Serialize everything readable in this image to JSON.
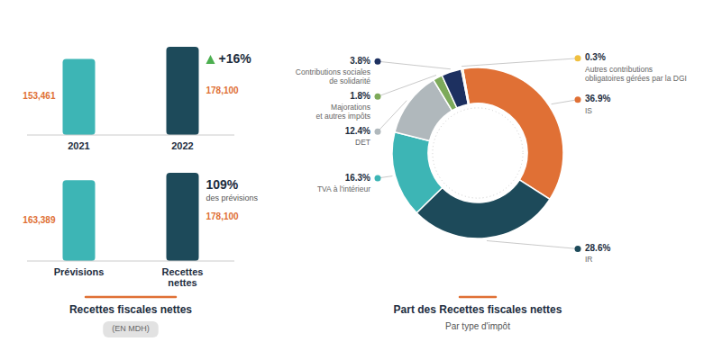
{
  "chart_data": [
    {
      "type": "bar",
      "categories": [
        "2021",
        "2022"
      ],
      "values": [
        153461,
        178100
      ],
      "value_labels": [
        "153,461",
        "178,100"
      ],
      "colors": [
        "#3db5b5",
        "#1d4a5a"
      ],
      "ylim": [
        0,
        200000
      ],
      "data_labels": true,
      "tick_labels": "x",
      "annotations": [
        "+16%"
      ]
    },
    {
      "type": "bar",
      "title": "Recettes fiscales nettes",
      "subtitle": "(EN MDH)",
      "categories": [
        "Prévisions",
        "Recettes\nnettes"
      ],
      "values": [
        163389,
        178100
      ],
      "value_labels": [
        "163,389",
        "178,100"
      ],
      "colors": [
        "#3db5b5",
        "#1d4a5a"
      ],
      "ylim": [
        0,
        200000
      ],
      "data_labels": true,
      "tick_labels": "x",
      "annotations": [
        "109%",
        "des prévisions"
      ]
    },
    {
      "type": "pie",
      "title": "Part des Recettes fiscales nettes",
      "subtitle": "Par type d'impôt",
      "categories": [
        "IS",
        "IR",
        "TVA à l'intérieur",
        "DET",
        "Majorations\net autres impôts",
        "Contributions sociales\nde solidarité",
        "Autres contributions\nobligatoires gérées par la DGI"
      ],
      "values": [
        36.9,
        28.6,
        16.3,
        12.4,
        1.8,
        3.8,
        0.3
      ],
      "value_labels": [
        "36.9%",
        "28.6%",
        "16.3%",
        "12.4%",
        "1.8%",
        "3.8%",
        "0.3%"
      ],
      "colors": [
        "#e07035",
        "#1d4a5a",
        "#3db5b5",
        "#b0b8bc",
        "#7daa5a",
        "#1d3060",
        "#f0c040"
      ],
      "data_labels": true
    }
  ]
}
